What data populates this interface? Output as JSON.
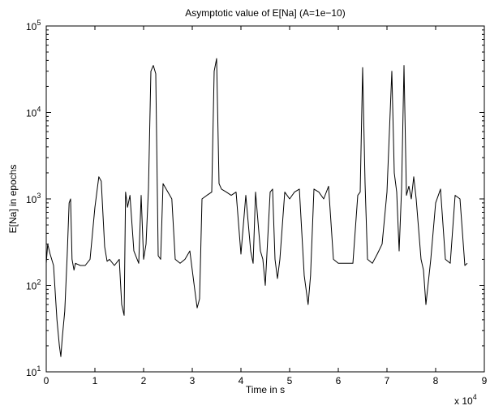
{
  "chart_data": {
    "type": "line",
    "title": "Asymptotic value of E[Na] (A=1e−10)",
    "xlabel": "Time in s",
    "ylabel": "E[Na] in epochs",
    "x_multiplier": "x 10",
    "x_multiplier_exp": "4",
    "xlim": [
      0,
      90000
    ],
    "ylim": [
      10,
      100000
    ],
    "yscale": "log",
    "grid": false,
    "x_ticks": [
      {
        "value": 0,
        "label": "0"
      },
      {
        "value": 10000,
        "label": "1"
      },
      {
        "value": 20000,
        "label": "2"
      },
      {
        "value": 30000,
        "label": "3"
      },
      {
        "value": 40000,
        "label": "4"
      },
      {
        "value": 50000,
        "label": "5"
      },
      {
        "value": 60000,
        "label": "6"
      },
      {
        "value": 70000,
        "label": "7"
      },
      {
        "value": 80000,
        "label": "8"
      },
      {
        "value": 90000,
        "label": "9"
      }
    ],
    "y_ticks": [
      {
        "value": 10,
        "base": "10",
        "exp": "1"
      },
      {
        "value": 100,
        "base": "10",
        "exp": "2"
      },
      {
        "value": 1000,
        "base": "10",
        "exp": "3"
      },
      {
        "value": 10000,
        "base": "10",
        "exp": "4"
      },
      {
        "value": 100000,
        "base": "10",
        "exp": "5"
      }
    ],
    "series": [
      {
        "color": "#000000",
        "x": [
          0,
          300,
          800,
          1500,
          2200,
          2700,
          3000,
          3300,
          3800,
          4300,
          4700,
          5000,
          5300,
          5700,
          6000,
          7000,
          8000,
          9000,
          10000,
          10800,
          11300,
          12000,
          12500,
          13000,
          14000,
          15000,
          15500,
          16000,
          16300,
          16700,
          17200,
          18000,
          19000,
          19500,
          20000,
          20500,
          21000,
          21500,
          22000,
          22500,
          23000,
          23500,
          24000,
          25000,
          25800,
          26500,
          27500,
          28500,
          29500,
          30500,
          31000,
          31500,
          32000,
          33000,
          34000,
          34500,
          35000,
          35500,
          36000,
          37000,
          38000,
          39000,
          40000,
          41000,
          42000,
          42500,
          43000,
          44000,
          44500,
          45000,
          46000,
          46500,
          47000,
          47500,
          48000,
          49000,
          50000,
          51000,
          52000,
          53000,
          53800,
          54300,
          55000,
          56000,
          57000,
          58000,
          59000,
          60000,
          61000,
          62000,
          63000,
          64000,
          64500,
          65000,
          65500,
          66000,
          67000,
          68000,
          69000,
          70000,
          71000,
          71500,
          72000,
          72500,
          73000,
          73500,
          74000,
          74500,
          75000,
          75500,
          76000,
          77000,
          77500,
          78000,
          79000,
          80000,
          81000,
          82000,
          83000,
          84000,
          85000,
          86000,
          86500
        ],
        "y": [
          180,
          300,
          230,
          170,
          40,
          20,
          15,
          25,
          50,
          220,
          900,
          1000,
          200,
          150,
          180,
          170,
          170,
          200,
          800,
          1800,
          1600,
          280,
          190,
          200,
          170,
          200,
          60,
          45,
          1200,
          800,
          1100,
          250,
          180,
          1100,
          200,
          300,
          1300,
          30000,
          35000,
          28000,
          220,
          200,
          1500,
          1200,
          1000,
          200,
          180,
          200,
          250,
          90,
          55,
          70,
          1000,
          1100,
          1200,
          30000,
          42000,
          1500,
          1300,
          1200,
          1100,
          1200,
          230,
          1100,
          250,
          180,
          1200,
          250,
          200,
          100,
          1200,
          1300,
          200,
          120,
          200,
          1200,
          1000,
          1200,
          1300,
          130,
          60,
          130,
          1300,
          1200,
          1000,
          1400,
          200,
          180,
          180,
          180,
          180,
          1100,
          1200,
          33000,
          1500,
          200,
          180,
          230,
          300,
          1200,
          30000,
          2000,
          1200,
          250,
          1300,
          35000,
          1100,
          1400,
          1000,
          1800,
          1000,
          200,
          150,
          60,
          200,
          900,
          1300,
          200,
          180,
          1100,
          1000,
          170,
          180
        ]
      }
    ]
  }
}
